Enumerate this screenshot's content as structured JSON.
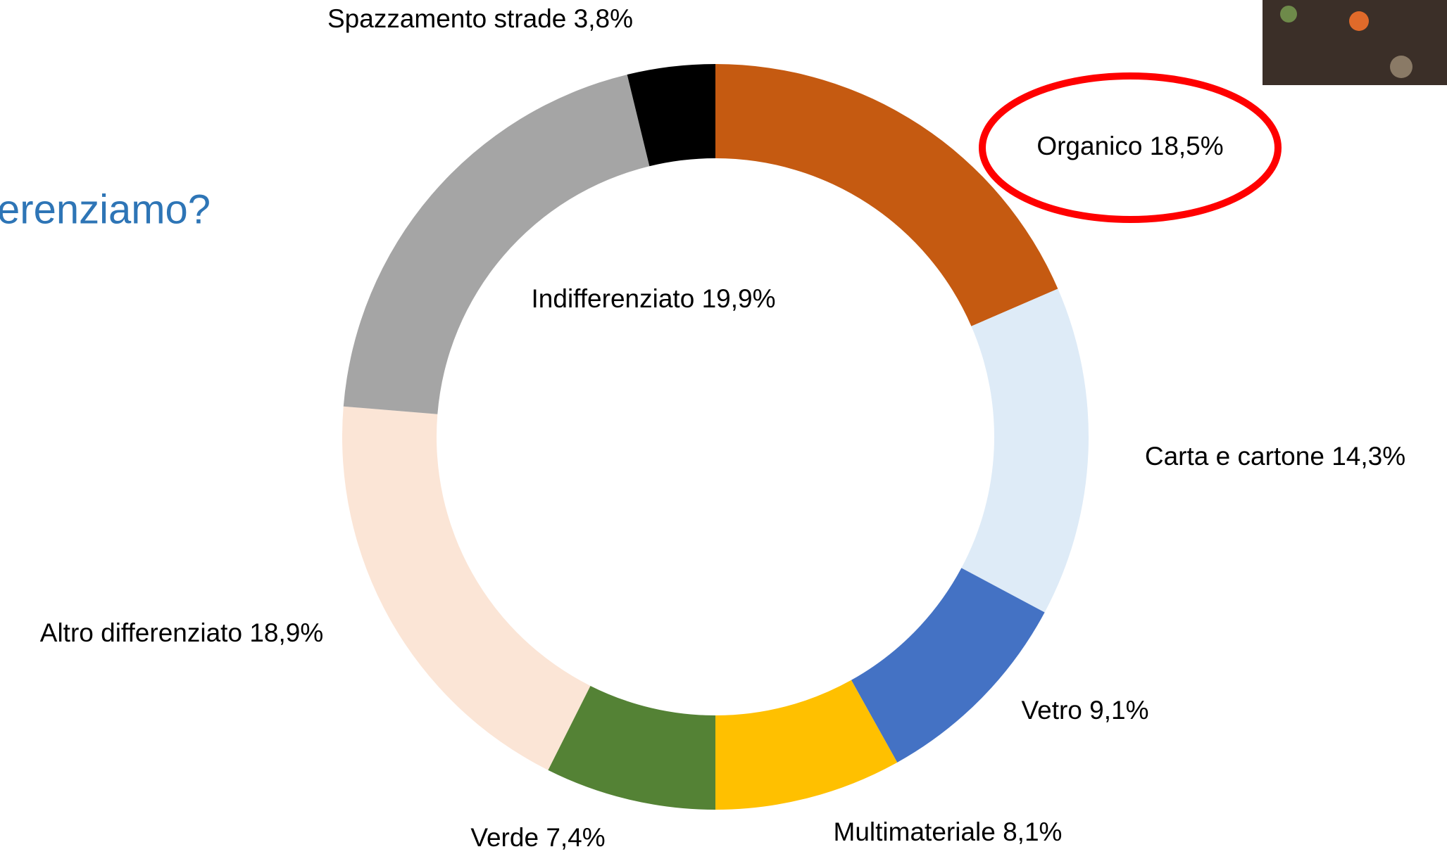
{
  "chart_data": {
    "type": "donut",
    "title": "erenziamo?",
    "categories": [
      "Organico",
      "Carta e cartone",
      "Vetro",
      "Multimateriale",
      "Verde",
      "Altro differenziato",
      "Indifferenziato",
      "Spazzamento strade"
    ],
    "values": [
      18.5,
      14.3,
      9.1,
      8.1,
      7.4,
      18.9,
      19.9,
      3.8
    ],
    "value_labels": [
      "18,5%",
      "14,3%",
      "9,1%",
      "8,1%",
      "7,4%",
      "18,9%",
      "19,9%",
      "3,8%"
    ],
    "colors": [
      "#c55a11",
      "#deebf7",
      "#4472c4",
      "#ffc000",
      "#548235",
      "#fbe5d6",
      "#a5a5a5",
      "#000000"
    ]
  }
}
